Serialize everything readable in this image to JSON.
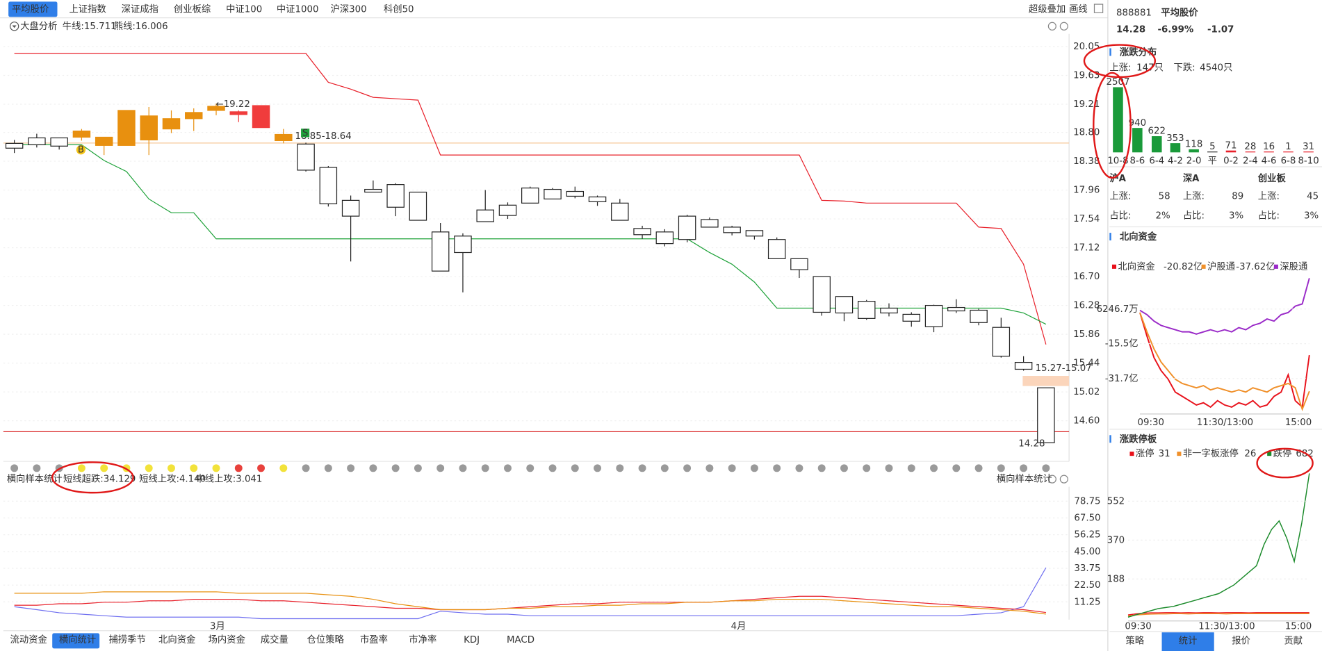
{
  "top_tabs": [
    "平均股价",
    "上证指数",
    "深证成指",
    "创业板综",
    "中证100",
    "中证1000",
    "沪深300",
    "科创50"
  ],
  "top_tools": [
    "超级叠加",
    "画线"
  ],
  "analysis": {
    "label": "大盘分析",
    "bull": "牛线:15.711",
    "bear": "熊线:16.006"
  },
  "kline": {
    "open": [
      18.57,
      18.62,
      18.6,
      18.73,
      18.61,
      18.61,
      18.69,
      18.85,
      19.0,
      19.12,
      19.1,
      19.19,
      18.77,
      18.63,
      18.29,
      17.81,
      17.97,
      18.04,
      17.93,
      17.35,
      17.29,
      17.5,
      17.59,
      17.77,
      17.83,
      17.87,
      17.86,
      17.77,
      17.4,
      17.35,
      17.24,
      17.53,
      17.42,
      17.37,
      17.24,
      16.96,
      16.7,
      16.41,
      16.34,
      16.24,
      16.15,
      15.97,
      16.25,
      16.21,
      15.96,
      15.45,
      15.08
    ],
    "high": [
      18.69,
      18.78,
      18.72,
      18.85,
      18.73,
      19.12,
      19.17,
      19.12,
      19.15,
      19.22,
      19.12,
      19.19,
      18.85,
      18.65,
      18.31,
      17.88,
      18.1,
      18.06,
      17.93,
      17.48,
      17.33,
      17.96,
      17.78,
      18.01,
      17.99,
      18.01,
      17.88,
      17.83,
      17.44,
      17.39,
      17.6,
      17.56,
      17.44,
      17.37,
      17.27,
      16.96,
      16.7,
      16.41,
      16.36,
      16.31,
      16.18,
      16.29,
      16.37,
      16.23,
      16.1,
      15.54,
      15.08
    ],
    "low": [
      18.5,
      18.58,
      18.55,
      18.68,
      18.47,
      18.61,
      18.47,
      18.79,
      18.82,
      19.05,
      18.95,
      18.87,
      18.64,
      18.23,
      17.72,
      16.92,
      17.93,
      17.58,
      17.52,
      16.78,
      16.47,
      17.5,
      17.54,
      17.77,
      17.83,
      17.84,
      17.73,
      17.52,
      17.25,
      17.14,
      17.2,
      17.42,
      17.3,
      17.24,
      16.96,
      16.68,
      16.13,
      16.05,
      16.07,
      16.12,
      15.97,
      15.89,
      16.17,
      15.99,
      15.52,
      15.33,
      14.28
    ],
    "close": [
      18.64,
      18.72,
      18.72,
      18.82,
      18.73,
      19.12,
      19.04,
      19.0,
      19.09,
      19.18,
      19.06,
      18.87,
      18.68,
      18.25,
      17.76,
      17.58,
      17.93,
      17.71,
      17.52,
      16.78,
      17.05,
      17.67,
      17.74,
      17.99,
      17.97,
      17.94,
      17.79,
      17.52,
      17.31,
      17.18,
      17.58,
      17.42,
      17.34,
      17.29,
      16.96,
      16.8,
      16.18,
      16.17,
      16.09,
      16.17,
      16.05,
      16.28,
      16.2,
      16.03,
      15.54,
      15.35,
      14.28
    ],
    "colors": [
      "#ffffff",
      "#ffffff",
      "#ffffff",
      "#e8900f",
      "#e8900f",
      "#e8900f",
      "#e8900f",
      "#e8900f",
      "#e8900f",
      "#e8900f",
      "#f03c3c",
      "#f03c3c",
      "#e8900f",
      "#ffffff",
      "#ffffff",
      "#ffffff",
      "#ffffff",
      "#ffffff",
      "#ffffff",
      "#ffffff",
      "#ffffff",
      "#ffffff",
      "#ffffff",
      "#ffffff",
      "#ffffff",
      "#ffffff",
      "#ffffff",
      "#ffffff",
      "#ffffff",
      "#ffffff",
      "#ffffff",
      "#ffffff",
      "#ffffff",
      "#ffffff",
      "#ffffff",
      "#ffffff",
      "#ffffff",
      "#ffffff",
      "#ffffff",
      "#ffffff",
      "#ffffff",
      "#ffffff",
      "#ffffff",
      "#ffffff",
      "#ffffff",
      "#ffffff",
      "#ffffff"
    ],
    "bull_line": {
      "color": "#e8202a",
      "values": [
        19.95,
        19.95,
        19.95,
        19.95,
        19.95,
        19.95,
        19.95,
        19.95,
        19.95,
        19.95,
        19.95,
        19.95,
        19.95,
        19.95,
        19.53,
        19.43,
        19.31,
        19.29,
        19.27,
        18.47,
        18.47,
        18.47,
        18.47,
        18.47,
        18.47,
        18.47,
        18.47,
        18.47,
        18.47,
        18.47,
        18.47,
        18.47,
        18.47,
        18.47,
        18.47,
        18.47,
        17.81,
        17.8,
        17.77,
        17.77,
        17.77,
        17.77,
        17.77,
        17.42,
        17.4,
        16.88,
        15.711
      ]
    },
    "bear_line": {
      "color": "#1fa23a",
      "values": [
        18.62,
        18.62,
        18.62,
        18.62,
        18.39,
        18.23,
        17.83,
        17.63,
        17.63,
        17.25,
        17.25,
        17.25,
        17.25,
        17.25,
        17.25,
        17.25,
        17.25,
        17.25,
        17.25,
        17.25,
        17.25,
        17.25,
        17.25,
        17.25,
        17.25,
        17.25,
        17.25,
        17.25,
        17.25,
        17.25,
        17.25,
        17.05,
        16.88,
        16.62,
        16.24,
        16.24,
        16.24,
        16.24,
        16.24,
        16.24,
        16.24,
        16.24,
        16.24,
        16.24,
        16.24,
        16.17,
        16.006
      ]
    },
    "ylim": [
      14.07,
      20.235
    ],
    "yticks": [
      20.05,
      19.63,
      19.21,
      {
        "value": 18.8,
        "label": "18.80"
      },
      18.38,
      17.96,
      17.54,
      17.12,
      {
        "value": 16.7,
        "label": "16.70"
      },
      16.28,
      15.86,
      15.44,
      15.02,
      {
        "value": 14.6,
        "label": "14.60"
      }
    ],
    "annotations": [
      "←19.22",
      "18.85-18.64",
      "15.27-15.07",
      "14.28"
    ],
    "badges": [
      "B",
      "S"
    ]
  },
  "month_labels": [
    "3月",
    "4月"
  ],
  "signal_dots": [
    "#9a9a9a",
    "#9a9a9a",
    "#9a9a9a",
    "#f2e23a",
    "#f2e23a",
    "#f2e23a",
    "#f2e23a",
    "#f2e23a",
    "#f2e23a",
    "#f2e23a",
    "#e8413c",
    "#e8413c",
    "#f2e23a",
    "#9a9a9a",
    "#9a9a9a",
    "#9a9a9a",
    "#9a9a9a",
    "#9a9a9a",
    "#9a9a9a",
    "#9a9a9a",
    "#9a9a9a",
    "#9a9a9a",
    "#9a9a9a",
    "#9a9a9a",
    "#9a9a9a",
    "#9a9a9a",
    "#9a9a9a",
    "#9a9a9a",
    "#9a9a9a",
    "#9a9a9a",
    "#9a9a9a",
    "#9a9a9a",
    "#9a9a9a",
    "#9a9a9a",
    "#9a9a9a",
    "#9a9a9a",
    "#9a9a9a",
    "#9a9a9a",
    "#9a9a9a",
    "#9a9a9a",
    "#9a9a9a",
    "#9a9a9a",
    "#9a9a9a",
    "#9a9a9a",
    "#9a9a9a",
    "#9a9a9a",
    "#9a9a9a"
  ],
  "stats": {
    "title_left": "横向样本统计",
    "title_right": "横向样本统计",
    "series": [
      {
        "name": "短线超跌:34.129",
        "color": "#6e6ef0",
        "values": [
          8,
          6,
          4,
          3,
          2,
          1,
          1,
          1,
          1,
          1,
          1,
          0,
          0,
          0,
          0,
          0,
          0,
          0,
          0,
          5,
          4,
          3,
          3,
          2,
          2,
          2,
          2,
          2,
          2,
          2,
          2,
          2,
          2,
          2,
          2,
          2,
          2,
          2,
          2,
          2,
          2,
          2,
          2,
          3,
          4,
          8,
          34.129
        ]
      },
      {
        "name": "短线上攻:4.140",
        "color": "#e8202a",
        "values": [
          9,
          9,
          10,
          10,
          11,
          11,
          12,
          12,
          13,
          13,
          13,
          12,
          12,
          11,
          10,
          9,
          8,
          7,
          7,
          6,
          6,
          6,
          7,
          8,
          9,
          10,
          10,
          11,
          11,
          11,
          11,
          11,
          12,
          13,
          14,
          15,
          15,
          14,
          13,
          12,
          11,
          10,
          9,
          8,
          7,
          6,
          4.14
        ]
      },
      {
        "name": "中线上攻:3.041",
        "color": "#e8900f",
        "values": [
          17,
          17,
          17,
          17,
          18,
          18,
          18,
          18,
          18,
          18,
          17,
          17,
          17,
          17,
          16,
          15,
          13,
          10,
          8,
          6,
          6,
          6,
          7,
          7,
          8,
          8,
          9,
          9,
          10,
          10,
          11,
          11,
          12,
          12,
          13,
          13,
          13,
          12,
          11,
          10,
          9,
          8,
          8,
          7,
          6,
          5,
          3.041
        ]
      }
    ],
    "ylim": [
      0,
      88.4
    ],
    "yticks": [
      78.75,
      {
        "value": 67.5,
        "label": "67.50"
      },
      56.25,
      {
        "value": 45,
        "label": "45.00"
      },
      33.75,
      {
        "value": 22.5,
        "label": "22.50"
      },
      11.25
    ]
  },
  "bottom_tabs": [
    "流动资金",
    "横向统计",
    "捕捞季节",
    "北向资金",
    "场内资金",
    "成交量",
    "仓位策略",
    "市盈率",
    "市净率",
    "KDJ",
    "MACD"
  ],
  "quote": {
    "code": "888881",
    "name": "平均股价",
    "price": "14.28",
    "change_pct": "-6.99%",
    "change": "-1.07"
  },
  "distribution": {
    "title": "涨跌分布",
    "up_label": "上涨:",
    "up_count": "147只",
    "down_label": "下跌:",
    "down_count": "4540只",
    "categories": [
      "10-8",
      "8-6",
      "6-4",
      "4-2",
      "2-0",
      "平",
      "0-2",
      "2-4",
      "4-6",
      "6-8",
      "8-10"
    ],
    "values": [
      2507,
      940,
      622,
      353,
      118,
      5,
      71,
      28,
      16,
      1,
      31
    ],
    "colors": [
      "#1a9a3a",
      "#1a9a3a",
      "#1a9a3a",
      "#1a9a3a",
      "#1a9a3a",
      "#333333",
      "#e8202a",
      "#e8202a",
      "#e8202a",
      "#e8202a",
      "#e8202a"
    ]
  },
  "markets": [
    {
      "name": "沪A",
      "up_label": "上涨:",
      "up": "58",
      "ratio_label": "占比:",
      "ratio": "2%"
    },
    {
      "name": "深A",
      "up_label": "上涨:",
      "up": "89",
      "ratio_label": "占比:",
      "ratio": "3%"
    },
    {
      "name": "创业板",
      "up_label": "上涨:",
      "up": "45",
      "ratio_label": "占比:",
      "ratio": "3%"
    }
  ],
  "north": {
    "title": "北向资金",
    "series": [
      {
        "name": "北向资金",
        "value_label": "-20.82亿",
        "color": "#e8101a",
        "values": [
          -1,
          -12,
          -22,
          -28,
          -32,
          -38,
          -40,
          -42,
          -44,
          -43,
          -45,
          -42,
          -44,
          -45,
          -43,
          -44,
          -42,
          -45,
          -44,
          -40,
          -38,
          -30,
          -42,
          -45,
          -20.82
        ]
      },
      {
        "name": "沪股通",
        "value_label": "-37.62亿",
        "color": "#f0902a",
        "values": [
          -1,
          -10,
          -18,
          -24,
          -28,
          -32,
          -34,
          -35,
          -36,
          -35,
          -37,
          -36,
          -37,
          -38,
          -37,
          -38,
          -36,
          -37,
          -38,
          -36,
          -35,
          -34,
          -36,
          -46,
          -37.62
        ]
      },
      {
        "name": "深股通",
        "color": "#9a2ac8",
        "values": [
          0,
          -2,
          -5,
          -7,
          -8,
          -9,
          -10,
          -10,
          -11,
          -10,
          -9,
          -10,
          -9,
          -10,
          -8,
          -9,
          -7,
          -6,
          -4,
          -5,
          -2,
          -1,
          2,
          3,
          15
        ]
      }
    ],
    "ylim": [
      -47.4,
      16.4
    ],
    "yticks": [
      {
        "value": 0.62467,
        "label": "6246.7万"
      },
      {
        "value": -15.5,
        "label": "-15.5亿"
      },
      {
        "value": -31.7,
        "label": "-31.7亿"
      }
    ],
    "xticks": [
      "09:30",
      "11:30/13:00",
      "15:00"
    ]
  },
  "limit": {
    "title": "涨跌停板",
    "series": [
      {
        "name": "涨停",
        "value_label": "31",
        "color": "#e8101a",
        "values": [
          20,
          25,
          28,
          30,
          30,
          31,
          31,
          30,
          31,
          30,
          31,
          31,
          30,
          31,
          31,
          31,
          30,
          31,
          31,
          31,
          31,
          31,
          31,
          31,
          31
        ]
      },
      {
        "name": "非一字板涨停",
        "value_label": "26",
        "color": "#f0902a",
        "values": [
          15,
          20,
          22,
          24,
          25,
          25,
          26,
          26,
          25,
          26,
          26,
          26,
          26,
          25,
          26,
          26,
          26,
          26,
          26,
          26,
          26,
          26,
          26,
          26,
          26
        ]
      },
      {
        "name": "跌停",
        "value_label": "682",
        "color": "#1a8a2a",
        "values": [
          10,
          20,
          30,
          40,
          50,
          55,
          60,
          70,
          80,
          90,
          100,
          110,
          120,
          140,
          160,
          190,
          220,
          250,
          350,
          420,
          460,
          380,
          270,
          450,
          682
        ]
      }
    ],
    "ylim": [
      0,
      738
    ],
    "yticks": [
      188,
      370,
      552
    ],
    "xticks": [
      "09:30",
      "11:30/13:00",
      "15:00"
    ]
  },
  "side_tabs": [
    "策略",
    "统计",
    "报价",
    "贡献"
  ]
}
